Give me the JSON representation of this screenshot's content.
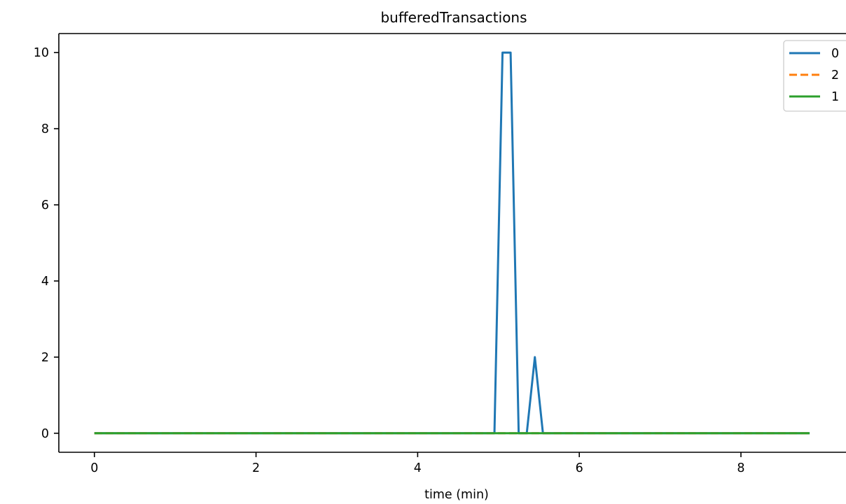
{
  "chart_data": {
    "type": "line",
    "title": "bufferedTransactions",
    "xlabel": "time (min)",
    "ylabel": "",
    "xlim": [
      -0.44,
      9.3
    ],
    "ylim": [
      -0.5,
      10.5
    ],
    "xticks": [
      0,
      2,
      4,
      6,
      8
    ],
    "yticks": [
      0,
      2,
      4,
      6,
      8,
      10
    ],
    "xtick_labels": [
      "0",
      "2",
      "4",
      "6",
      "8"
    ],
    "ytick_labels": [
      "0",
      "2",
      "4",
      "6",
      "8",
      "10"
    ],
    "grid": false,
    "legend_position": "top-right",
    "series": [
      {
        "name": "0",
        "color": "#1f77b4",
        "dash": "solid",
        "x": [
          0,
          4.95,
          5.05,
          5.15,
          5.25,
          5.35,
          5.45,
          5.55,
          8.85
        ],
        "y": [
          0,
          0,
          10,
          10,
          0,
          0,
          2,
          0,
          0
        ]
      },
      {
        "name": "2",
        "color": "#ff7f0e",
        "dash": "dashed",
        "x": [
          0,
          8.85
        ],
        "y": [
          0,
          0
        ]
      },
      {
        "name": "1",
        "color": "#2ca02c",
        "dash": "solid",
        "x": [
          0,
          8.85
        ],
        "y": [
          0,
          0
        ]
      }
    ]
  }
}
